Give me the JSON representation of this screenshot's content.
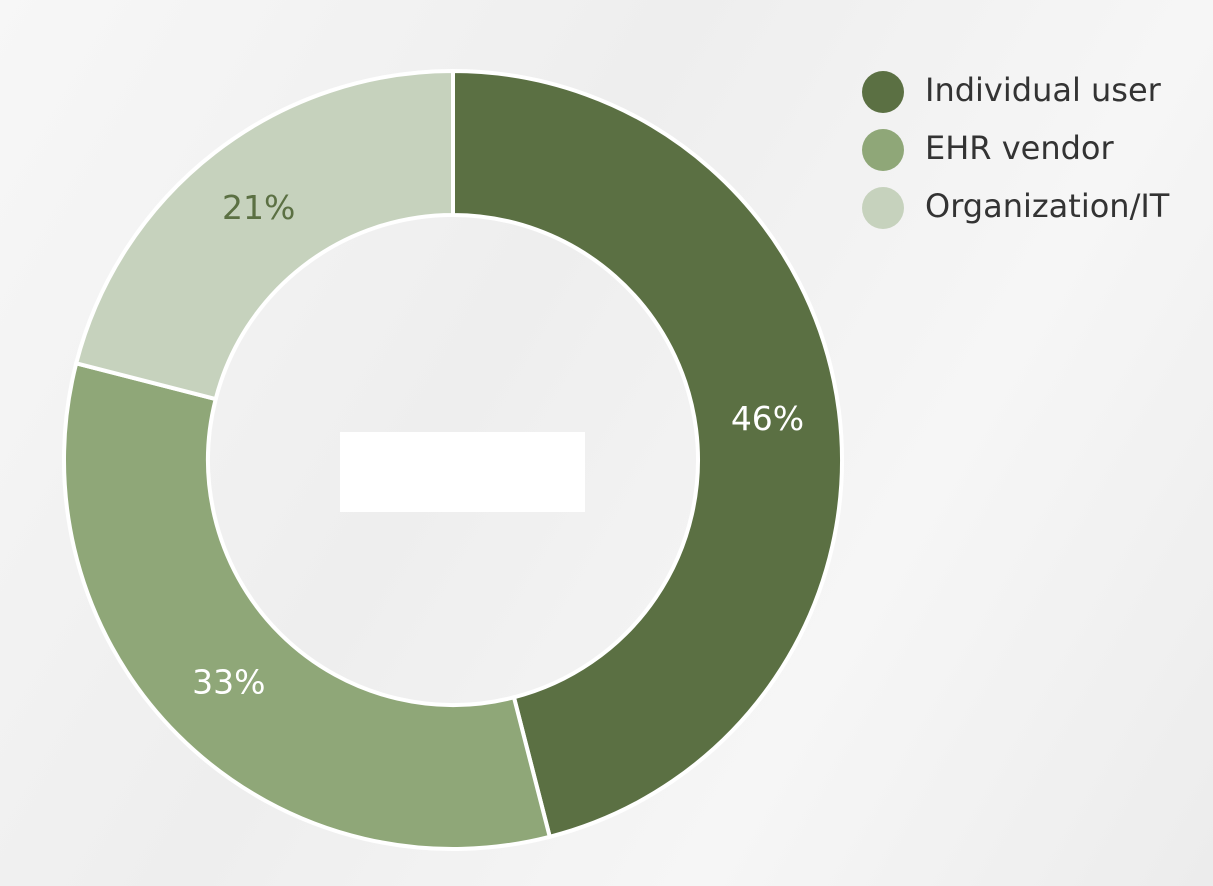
{
  "chart_data": {
    "type": "donut",
    "categories": [
      "Individual user",
      "EHR vendor",
      "Organization/IT"
    ],
    "values": [
      46,
      33,
      21
    ],
    "value_labels": [
      "46%",
      "33%",
      "21%"
    ],
    "colors": [
      "#5b7043",
      "#8fa778",
      "#c6d2bd"
    ],
    "legend": "top-right"
  }
}
